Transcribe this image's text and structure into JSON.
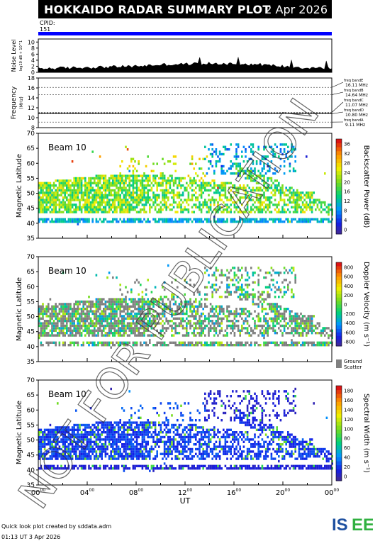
{
  "header": {
    "title": "HOKKAIDO RADAR SUMMARY PLOT",
    "date": "2 Apr 2026"
  },
  "cpid": {
    "label": "CPID:",
    "value": "151"
  },
  "noise": {
    "ylabel": "Noise Level",
    "yunits": "log10 dB + 10^1",
    "yticks": [
      0,
      2,
      4,
      6,
      8,
      10
    ]
  },
  "frequency": {
    "ylabel": "Frequency",
    "yunits": "(MHz)",
    "yticks": [
      8,
      10,
      12,
      14,
      16,
      18
    ],
    "bands": [
      {
        "name": "freq bandE",
        "value": "16.11 MHz",
        "mhz": 16.11
      },
      {
        "name": "freq bandB",
        "value": "14.64 MHz",
        "mhz": 14.64
      },
      {
        "name": "freq bandC",
        "value": "11.07 MHz",
        "mhz": 11.07
      },
      {
        "name": "freq bandD",
        "value": "10.80 MHz",
        "mhz": 10.8
      },
      {
        "name": "freq bandA",
        "value": "9.11 MHz",
        "mhz": 9.11
      }
    ]
  },
  "panels": [
    {
      "beam": "Beam 10",
      "ylabel": "Magnetic Latitude",
      "yticks": [
        35,
        40,
        45,
        50,
        55,
        60,
        65,
        70
      ],
      "cbar_label": "Backscatter Power (dB)",
      "cbar_ticks": [
        "0",
        "4",
        "8",
        "12",
        "16",
        "20",
        "24",
        "28",
        "32",
        "36"
      ]
    },
    {
      "beam": "Beam 10",
      "ylabel": "Magnetic Latitude",
      "yticks": [
        35,
        40,
        45,
        50,
        55,
        60,
        65,
        70
      ],
      "cbar_label": "Doppler Velocity (m s⁻¹)",
      "cbar_ticks": [
        "-800",
        "-600",
        "-400",
        "-200",
        "0",
        "200",
        "400",
        "600",
        "800"
      ],
      "ground_scatter": "Ground Scatter"
    },
    {
      "beam": "Beam 10",
      "ylabel": "Magnetic Latitude",
      "yticks": [
        35,
        40,
        45,
        50,
        55,
        60,
        65,
        70
      ],
      "cbar_label": "Spectral Width (m s⁻¹)",
      "cbar_ticks": [
        "0",
        "20",
        "40",
        "60",
        "80",
        "100",
        "120",
        "140",
        "160",
        "180"
      ]
    }
  ],
  "xaxis": {
    "label": "UT",
    "ticks": [
      "00",
      "04",
      "08",
      "12",
      "16",
      "20",
      "00"
    ],
    "tick_suffix": "00"
  },
  "watermark": "NOT FOR PUBLICATION",
  "footer": {
    "credit": "Quick look plot created by sddata.adm",
    "time": "01:13 UT 3 Apr 2026"
  },
  "logo": "ISEE",
  "colors": {
    "header": "#000000",
    "bar": "#0000ff",
    "ground_scatter": "#808080",
    "logo_blue": "#1e50a0",
    "logo_green": "#30b040"
  },
  "chart_data": [
    {
      "type": "area",
      "title": "Noise Level",
      "xlabel": "UT",
      "xlim": [
        0,
        24
      ],
      "ylabel": "Noise Level",
      "ylim": [
        0,
        11
      ],
      "x": [
        0,
        2,
        4,
        6,
        8,
        10,
        12,
        14,
        16,
        18,
        20,
        22,
        24
      ],
      "values": [
        1.2,
        1.4,
        1.6,
        1.8,
        2.0,
        2.5,
        2.7,
        2.9,
        2.8,
        2.6,
        2.0,
        1.5,
        1.3
      ]
    },
    {
      "type": "line",
      "title": "Frequency",
      "xlabel": "UT",
      "xlim": [
        0,
        24
      ],
      "ylabel": "Frequency (MHz)",
      "ylim": [
        8,
        18
      ],
      "series": [
        {
          "name": "freq bandE",
          "values": [
            16.11,
            16.11
          ]
        },
        {
          "name": "freq bandB",
          "values": [
            14.64,
            14.64
          ]
        },
        {
          "name": "freq bandC",
          "values": [
            11.07,
            11.07
          ]
        },
        {
          "name": "freq bandD",
          "values": [
            10.8,
            10.8
          ]
        },
        {
          "name": "freq bandA",
          "values": [
            9.11,
            9.11
          ]
        }
      ]
    },
    {
      "type": "heatmap",
      "title": "Beam 10",
      "xlabel": "UT",
      "xlim": [
        0,
        24
      ],
      "ylabel": "Magnetic Latitude",
      "ylim": [
        35,
        70
      ],
      "colorbar": "Backscatter Power (dB)",
      "clim": [
        0,
        36
      ]
    },
    {
      "type": "heatmap",
      "title": "Beam 10",
      "xlabel": "UT",
      "xlim": [
        0,
        24
      ],
      "ylabel": "Magnetic Latitude",
      "ylim": [
        35,
        70
      ],
      "colorbar": "Doppler Velocity (m s⁻¹)",
      "clim": [
        -800,
        800
      ]
    },
    {
      "type": "heatmap",
      "title": "Beam 10",
      "xlabel": "UT",
      "xlim": [
        0,
        24
      ],
      "ylabel": "Magnetic Latitude",
      "ylim": [
        35,
        70
      ],
      "colorbar": "Spectral Width (m s⁻¹)",
      "clim": [
        0,
        180
      ]
    }
  ]
}
